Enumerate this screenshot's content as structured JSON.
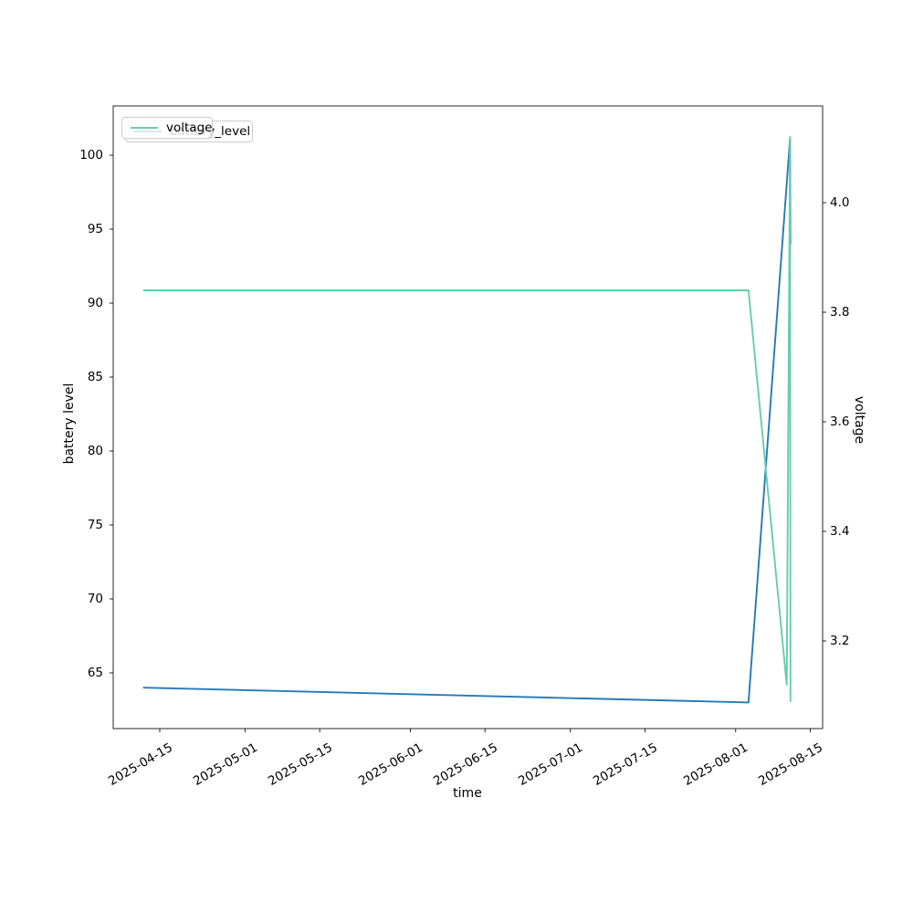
{
  "chart_data": {
    "type": "line",
    "title": "",
    "xlabel": "time",
    "ylabel_left": "battery level",
    "ylabel_right": "voltage",
    "grid": false,
    "x_tick_labels": [
      "2025-04-15",
      "2025-05-01",
      "2025-05-15",
      "2025-06-01",
      "2025-06-15",
      "2025-07-01",
      "2025-07-15",
      "2025-08-01",
      "2025-08-15"
    ],
    "y_left_ticks": [
      100,
      95,
      90,
      85,
      80,
      75,
      70,
      65
    ],
    "y_right_ticks": [
      4.0,
      3.8,
      3.6,
      3.4,
      3.2
    ],
    "ylim_left": [
      61.2,
      103.3
    ],
    "ylim_right": [
      3.04,
      4.18
    ],
    "xlim": [
      "2025-04-07",
      "2025-08-17"
    ],
    "legend": {
      "position": "upper left",
      "front": {
        "label": "voltage",
        "color": "#66cdaa"
      },
      "back": {
        "label": "battery_level",
        "color": "#2679b8"
      }
    },
    "series": [
      {
        "name": "battery_level",
        "axis": "left",
        "color": "#2679b8",
        "points": [
          [
            "2025-04-12 00:00",
            64.0
          ],
          [
            "2025-08-03 10:00",
            63.0
          ],
          [
            "2025-08-11 05:00",
            101.1
          ],
          [
            "2025-08-11 07:00",
            94.0
          ]
        ]
      },
      {
        "name": "voltage_level",
        "axis": "right",
        "color": "#66cdaa",
        "points": [
          [
            "2025-04-12 00:00",
            3.84
          ],
          [
            "2025-08-03 10:00",
            3.84
          ],
          [
            "2025-08-10 14:00",
            3.12
          ],
          [
            "2025-08-11 05:00",
            4.12
          ],
          [
            "2025-08-11 07:00",
            3.09
          ]
        ]
      }
    ]
  }
}
